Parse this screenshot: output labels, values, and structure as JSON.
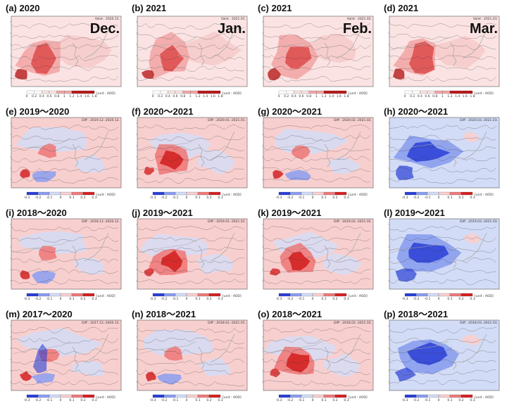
{
  "rows": [
    {
      "type": "mean",
      "panels": [
        {
          "label": "(a) 2020",
          "month": "Dec.",
          "header": "Valid : 2020.12.",
          "palette": "red",
          "theme": "mean"
        },
        {
          "label": "(b) 2021",
          "month": "Jan.",
          "header": "Valid : 2021.01.",
          "palette": "red",
          "theme": "mean"
        },
        {
          "label": "(c) 2021",
          "month": "Feb.",
          "header": "Valid : 2021.02.",
          "palette": "red",
          "theme": "mean"
        },
        {
          "label": "(d) 2021",
          "month": "Mar.",
          "header": "Valid : 2021.03.",
          "palette": "red",
          "theme": "mean"
        }
      ]
    },
    {
      "type": "diff",
      "panels": [
        {
          "label": "(e) 2019～2020",
          "header": "Diff : 2019.12.-2020.12.",
          "theme": "mixed"
        },
        {
          "label": "(f) 2020～2021",
          "header": "Diff : 2020.01.-2021.01.",
          "theme": "red-center"
        },
        {
          "label": "(g) 2020～2021",
          "header": "Diff : 2020.02.-2021.02.",
          "theme": "mixed"
        },
        {
          "label": "(h) 2020～2021",
          "header": "Diff : 2020.03.-2021.03.",
          "theme": "blue"
        }
      ]
    },
    {
      "type": "diff",
      "panels": [
        {
          "label": "(i) 2018～2020",
          "header": "Diff : 2018.12.-2020.12.",
          "theme": "mixed"
        },
        {
          "label": "(j) 2019～2021",
          "header": "Diff : 2019.01.-2021.01.",
          "theme": "red-center"
        },
        {
          "label": "(k) 2019～2021",
          "header": "Diff : 2019.02.-2021.02.",
          "theme": "red-center"
        },
        {
          "label": "(l) 2019～2021",
          "header": "Diff : 2019.03.-2021.03.",
          "theme": "blue"
        }
      ]
    },
    {
      "type": "diff",
      "panels": [
        {
          "label": "(m) 2017～2020",
          "header": "Diff : 2017.12.-2020.12.",
          "theme": "mixed-blue"
        },
        {
          "label": "(n) 2018～2021",
          "header": "Diff : 2018.01.-2021.01.",
          "theme": "mixed"
        },
        {
          "label": "(o) 2018～2021",
          "header": "Diff : 2018.02.-2021.02.",
          "theme": "red-center"
        },
        {
          "label": "(p) 2018～2021",
          "header": "Diff : 2018.03.-2021.03.",
          "theme": "blue"
        }
      ]
    }
  ],
  "colors": {
    "mean_light": "#fbe3e3",
    "mean_mid": "#f2a6a6",
    "mean_dark": "#dd4b4b",
    "mean_deep": "#b81a1a",
    "diff_red_light": "#f8cfcf",
    "diff_red_mid": "#ee7a7a",
    "diff_red_dark": "#d42222",
    "diff_blue_light": "#d3dcf6",
    "diff_blue_mid": "#8a9df0",
    "diff_blue_dark": "#2a3fd6",
    "coast": "#aaaaaa"
  },
  "mean_colorbar_ticks": [
    "0",
    "0.2",
    "0.4",
    "0.6",
    "0.8",
    "1",
    "1.2",
    "1.4",
    "1.6",
    "1.8"
  ],
  "diff_colorbar_ticks": [
    "-0.3",
    "-0.2",
    "-0.1",
    "0",
    "0.1",
    "0.2",
    "0.3"
  ],
  "colorbar_unit": "[unit : AOD]"
}
